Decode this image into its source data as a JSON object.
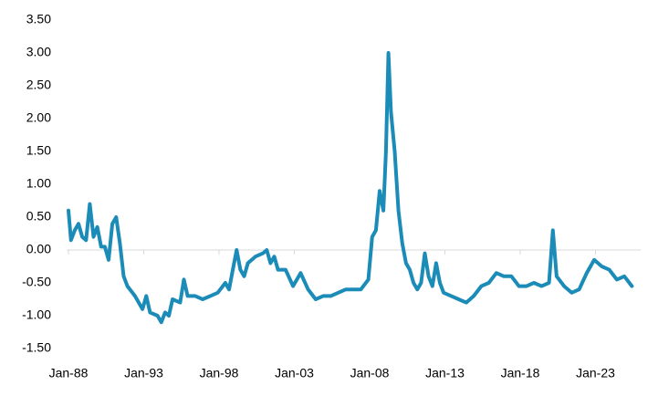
{
  "chart_data": {
    "type": "line",
    "x": [
      "Jan-88",
      "Mar-88",
      "Jun-88",
      "Sep-88",
      "Dec-88",
      "Mar-89",
      "Jun-89",
      "Sep-89",
      "Dec-89",
      "Mar-90",
      "Jun-90",
      "Sep-90",
      "Dec-90",
      "Mar-91",
      "Jun-91",
      "Sep-91",
      "Dec-91",
      "Jun-92",
      "Dec-92",
      "Mar-93",
      "Jun-93",
      "Dec-93",
      "Mar-94",
      "Jun-94",
      "Sep-94",
      "Dec-94",
      "Jun-95",
      "Sep-95",
      "Dec-95",
      "Jun-96",
      "Dec-96",
      "Jun-97",
      "Dec-97",
      "Jun-98",
      "Sep-98",
      "Dec-98",
      "Mar-99",
      "Jun-99",
      "Sep-99",
      "Dec-99",
      "Jun-00",
      "Dec-00",
      "Mar-01",
      "Jun-01",
      "Sep-01",
      "Dec-01",
      "Jun-02",
      "Dec-02",
      "Jun-03",
      "Dec-03",
      "Jun-04",
      "Dec-04",
      "Jun-05",
      "Dec-05",
      "Jun-06",
      "Dec-06",
      "Jun-07",
      "Dec-07",
      "Mar-08",
      "Jun-08",
      "Sep-08",
      "Dec-08",
      "Feb-09",
      "Apr-09",
      "Jun-09",
      "Sep-09",
      "Dec-09",
      "Mar-10",
      "Jun-10",
      "Sep-10",
      "Dec-10",
      "Mar-11",
      "Jun-11",
      "Sep-11",
      "Dec-11",
      "Mar-12",
      "Jun-12",
      "Sep-12",
      "Dec-12",
      "Jun-13",
      "Dec-13",
      "Jun-14",
      "Dec-14",
      "Jun-15",
      "Dec-15",
      "Jun-16",
      "Dec-16",
      "Jun-17",
      "Dec-17",
      "Jun-18",
      "Dec-18",
      "Jun-19",
      "Dec-19",
      "Mar-20",
      "Jun-20",
      "Dec-20",
      "Jun-21",
      "Dec-21",
      "Jun-22",
      "Dec-22",
      "Jun-23",
      "Dec-23",
      "Jun-24",
      "Dec-24",
      "Jun-25"
    ],
    "series": [
      {
        "color": "#1b8bb8",
        "values": [
          0.6,
          0.15,
          0.3,
          0.4,
          0.2,
          0.15,
          0.7,
          0.2,
          0.35,
          0.05,
          0.05,
          -0.15,
          0.4,
          0.5,
          0.1,
          -0.4,
          -0.55,
          -0.7,
          -0.9,
          -0.7,
          -0.95,
          -1.0,
          -1.1,
          -0.95,
          -1.0,
          -0.75,
          -0.8,
          -0.45,
          -0.7,
          -0.7,
          -0.75,
          -0.7,
          -0.65,
          -0.5,
          -0.6,
          -0.3,
          0.0,
          -0.3,
          -0.4,
          -0.2,
          -0.1,
          -0.05,
          0.0,
          -0.2,
          -0.1,
          -0.3,
          -0.3,
          -0.55,
          -0.35,
          -0.6,
          -0.75,
          -0.7,
          -0.7,
          -0.65,
          -0.6,
          -0.6,
          -0.6,
          -0.45,
          0.2,
          0.3,
          0.9,
          0.6,
          1.5,
          3.0,
          2.1,
          1.5,
          0.6,
          0.1,
          -0.2,
          -0.3,
          -0.5,
          -0.6,
          -0.5,
          -0.05,
          -0.4,
          -0.55,
          -0.2,
          -0.5,
          -0.65,
          -0.7,
          -0.75,
          -0.8,
          -0.7,
          -0.55,
          -0.5,
          -0.35,
          -0.4,
          -0.4,
          -0.55,
          -0.55,
          -0.5,
          -0.55,
          -0.5,
          0.3,
          -0.4,
          -0.55,
          -0.65,
          -0.6,
          -0.35,
          -0.15,
          -0.25,
          -0.3,
          -0.45,
          -0.4,
          -0.55
        ]
      }
    ],
    "xticks": [
      "Jan-88",
      "Jan-93",
      "Jan-98",
      "Jan-03",
      "Jan-08",
      "Jan-13",
      "Jan-18",
      "Jan-23"
    ],
    "ylim": [
      -1.5,
      3.5
    ],
    "yticks": [
      {
        "value": 3.5,
        "label": "3.50"
      },
      {
        "value": 3.0,
        "label": "3.00"
      },
      {
        "value": 2.5,
        "label": "2.50"
      },
      {
        "value": 2.0,
        "label": "2.00"
      },
      {
        "value": 1.5,
        "label": "1.50"
      },
      {
        "value": 1.0,
        "label": "1.00"
      },
      {
        "value": 0.5,
        "label": "0.50"
      },
      {
        "value": 0,
        "label": "0.00"
      },
      {
        "value": -0.5,
        "label": "-0.50"
      },
      {
        "value": -1.0,
        "label": "-1.00"
      },
      {
        "value": -1.5,
        "label": "-1.50"
      }
    ]
  }
}
